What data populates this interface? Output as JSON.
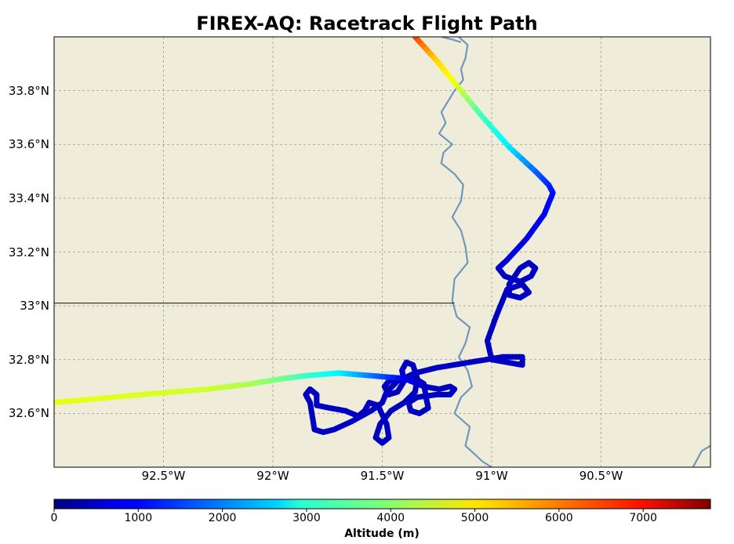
{
  "title": "FIREX-AQ: Racetrack Flight Path",
  "map": {
    "lon_range": [
      -93.0,
      -90.0
    ],
    "lat_range": [
      32.4,
      34.0
    ],
    "gridlines": true,
    "land_color": "#efedd9",
    "river_color": "#6688aa",
    "border_color": "#222222",
    "lon_ticks": [
      {
        "value": -92.5,
        "label": "92.5°W"
      },
      {
        "value": -92.0,
        "label": "92°W"
      },
      {
        "value": -91.5,
        "label": "91.5°W"
      },
      {
        "value": -91.0,
        "label": "91°W"
      },
      {
        "value": -90.5,
        "label": "90.5°W"
      }
    ],
    "lat_ticks": [
      {
        "value": 32.6,
        "label": "32.6°N"
      },
      {
        "value": 32.8,
        "label": "32.8°N"
      },
      {
        "value": 33.0,
        "label": "33°N"
      },
      {
        "value": 33.2,
        "label": "33.2°N"
      },
      {
        "value": 33.4,
        "label": "33.4°N"
      },
      {
        "value": 33.6,
        "label": "33.6°N"
      },
      {
        "value": 33.8,
        "label": "33.8°N"
      }
    ],
    "state_border": [
      [
        -93.0,
        33.01
      ],
      [
        -91.17,
        33.01
      ]
    ],
    "river": [
      [
        -91.15,
        34.0
      ],
      [
        -91.11,
        33.97
      ],
      [
        -91.12,
        33.92
      ],
      [
        -91.14,
        33.88
      ],
      [
        -91.13,
        33.84
      ],
      [
        -91.17,
        33.8
      ],
      [
        -91.2,
        33.76
      ],
      [
        -91.23,
        33.72
      ],
      [
        -91.21,
        33.68
      ],
      [
        -91.24,
        33.64
      ],
      [
        -91.18,
        33.6
      ],
      [
        -91.22,
        33.57
      ],
      [
        -91.23,
        33.53
      ],
      [
        -91.17,
        33.49
      ],
      [
        -91.13,
        33.45
      ],
      [
        -91.14,
        33.39
      ],
      [
        -91.18,
        33.33
      ],
      [
        -91.14,
        33.28
      ],
      [
        -91.12,
        33.22
      ],
      [
        -91.11,
        33.16
      ],
      [
        -91.17,
        33.1
      ],
      [
        -91.18,
        33.02
      ],
      [
        -91.16,
        32.96
      ],
      [
        -91.1,
        32.92
      ],
      [
        -91.12,
        32.86
      ],
      [
        -91.15,
        32.81
      ],
      [
        -91.11,
        32.76
      ],
      [
        -91.09,
        32.7
      ],
      [
        -91.14,
        32.66
      ],
      [
        -91.17,
        32.6
      ],
      [
        -91.1,
        32.55
      ],
      [
        -91.12,
        32.48
      ],
      [
        -91.04,
        32.42
      ],
      [
        -91.0,
        32.4
      ]
    ],
    "river_secondary": [
      [
        -91.23,
        34.0
      ],
      [
        -91.18,
        33.99
      ],
      [
        -91.14,
        33.98
      ]
    ],
    "river_corner": [
      [
        -90.08,
        32.4
      ],
      [
        -90.04,
        32.46
      ],
      [
        -90.0,
        32.48
      ]
    ]
  },
  "colorbar": {
    "label": "Altitude (m)",
    "min": 0,
    "max": 7800,
    "colormap": "jet",
    "ticks": [
      0,
      1000,
      2000,
      3000,
      4000,
      5000,
      6000,
      7000
    ]
  },
  "flight": {
    "track": [
      [
        -91.35,
        34.0,
        6400
      ],
      [
        -91.25,
        33.91,
        5200
      ],
      [
        -91.17,
        33.83,
        4800
      ],
      [
        -91.05,
        33.71,
        3500
      ],
      [
        -90.92,
        33.59,
        2800
      ],
      [
        -90.8,
        33.5,
        1800
      ],
      [
        -90.74,
        33.45,
        1300
      ],
      [
        -90.72,
        33.42,
        1100
      ],
      [
        -90.76,
        33.34,
        900
      ],
      [
        -90.84,
        33.25,
        800
      ],
      [
        -90.93,
        33.17,
        700
      ],
      [
        -90.97,
        33.14,
        600
      ],
      [
        -90.94,
        33.11,
        500
      ],
      [
        -90.87,
        33.09,
        500
      ],
      [
        -90.82,
        33.11,
        500
      ],
      [
        -90.8,
        33.14,
        500
      ],
      [
        -90.83,
        33.16,
        500
      ],
      [
        -90.87,
        33.14,
        500
      ],
      [
        -90.92,
        33.08,
        500
      ],
      [
        -90.92,
        33.04,
        500
      ],
      [
        -90.87,
        33.03,
        500
      ],
      [
        -90.83,
        33.05,
        500
      ],
      [
        -90.86,
        33.08,
        500
      ],
      [
        -90.93,
        33.06,
        500
      ],
      [
        -90.98,
        32.96,
        500
      ],
      [
        -91.02,
        32.87,
        500
      ],
      [
        -91.0,
        32.8,
        500
      ],
      [
        -90.93,
        32.79,
        500
      ],
      [
        -90.86,
        32.78,
        500
      ],
      [
        -90.86,
        32.81,
        500
      ],
      [
        -90.95,
        32.81,
        500
      ],
      [
        -91.1,
        32.79,
        500
      ],
      [
        -91.25,
        32.77,
        500
      ],
      [
        -91.35,
        32.75,
        500
      ],
      [
        -91.43,
        32.72,
        500
      ],
      [
        -91.48,
        32.68,
        500
      ],
      [
        -91.5,
        32.64,
        500
      ],
      [
        -91.55,
        32.61,
        500
      ],
      [
        -91.64,
        32.57,
        500
      ],
      [
        -91.72,
        32.54,
        500
      ],
      [
        -91.77,
        32.53,
        500
      ],
      [
        -91.81,
        32.54,
        500
      ],
      [
        -91.82,
        32.59,
        500
      ],
      [
        -91.83,
        32.64,
        500
      ],
      [
        -91.85,
        32.67,
        500
      ],
      [
        -91.83,
        32.69,
        500
      ],
      [
        -91.8,
        32.67,
        500
      ],
      [
        -91.8,
        32.63,
        500
      ],
      [
        -91.74,
        32.62,
        500
      ],
      [
        -91.67,
        32.61,
        500
      ],
      [
        -91.61,
        32.59,
        500
      ],
      [
        -91.58,
        32.61,
        500
      ],
      [
        -91.56,
        32.64,
        500
      ],
      [
        -91.52,
        32.63,
        500
      ],
      [
        -91.48,
        32.56,
        500
      ],
      [
        -91.47,
        32.51,
        500
      ],
      [
        -91.5,
        32.49,
        500
      ],
      [
        -91.53,
        32.51,
        500
      ],
      [
        -91.51,
        32.56,
        500
      ],
      [
        -91.46,
        32.61,
        500
      ],
      [
        -91.4,
        32.64,
        500
      ],
      [
        -91.35,
        32.68,
        500
      ],
      [
        -91.34,
        32.73,
        500
      ],
      [
        -91.36,
        32.78,
        500
      ],
      [
        -91.39,
        32.79,
        500
      ],
      [
        -91.41,
        32.76,
        500
      ],
      [
        -91.4,
        32.72,
        500
      ],
      [
        -91.43,
        32.68,
        500
      ],
      [
        -91.47,
        32.67,
        500
      ],
      [
        -91.49,
        32.7,
        500
      ],
      [
        -91.47,
        32.72,
        500
      ],
      [
        -91.41,
        32.73,
        500
      ],
      [
        -91.35,
        32.73,
        500
      ],
      [
        -91.31,
        32.71,
        500
      ],
      [
        -91.3,
        32.66,
        500
      ],
      [
        -91.29,
        32.62,
        500
      ],
      [
        -91.33,
        32.6,
        500
      ],
      [
        -91.37,
        32.61,
        500
      ],
      [
        -91.38,
        32.64,
        500
      ],
      [
        -91.34,
        32.66,
        500
      ],
      [
        -91.25,
        32.67,
        500
      ],
      [
        -91.19,
        32.67,
        500
      ],
      [
        -91.17,
        32.69,
        500
      ],
      [
        -91.19,
        32.7,
        500
      ],
      [
        -91.24,
        32.69,
        500
      ],
      [
        -91.31,
        32.7,
        500
      ],
      [
        -91.4,
        32.73,
        800
      ],
      [
        -91.55,
        32.74,
        1800
      ],
      [
        -91.7,
        32.75,
        2800
      ],
      [
        -91.85,
        32.74,
        3300
      ],
      [
        -91.95,
        32.73,
        3700
      ],
      [
        -92.1,
        32.71,
        4200
      ],
      [
        -92.3,
        32.69,
        4500
      ],
      [
        -92.6,
        32.67,
        4600
      ],
      [
        -93.0,
        32.64,
        4700
      ]
    ]
  }
}
